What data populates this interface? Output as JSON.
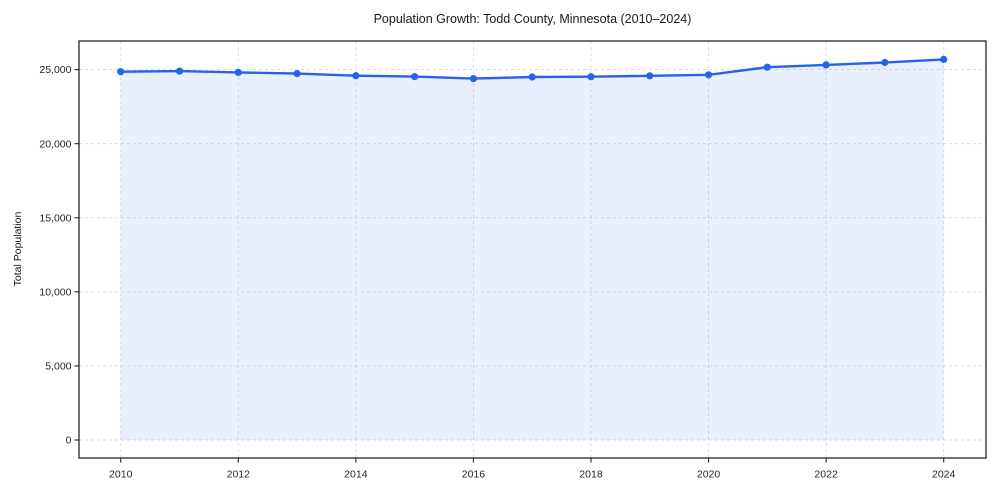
{
  "chart_data": {
    "type": "area",
    "title": "Population Growth: Todd County, Minnesota (2010–2024)",
    "xlabel": "",
    "ylabel": "Total Population",
    "series_name": "Total Population",
    "x": [
      2010,
      2011,
      2012,
      2013,
      2014,
      2015,
      2016,
      2017,
      2018,
      2019,
      2020,
      2021,
      2022,
      2023,
      2024
    ],
    "values": [
      24860,
      24900,
      24810,
      24730,
      24590,
      24530,
      24390,
      24500,
      24520,
      24580,
      24650,
      25160,
      25320,
      25480,
      25690
    ],
    "x_tick_values": [
      2010,
      2012,
      2014,
      2016,
      2018,
      2020,
      2022,
      2024
    ],
    "x_tick_labels": [
      "2010",
      "2012",
      "2014",
      "2016",
      "2018",
      "2020",
      "2022",
      "2024"
    ],
    "y_tick_values": [
      0,
      5000,
      10000,
      15000,
      20000,
      25000
    ],
    "y_tick_labels": [
      "0",
      "5,000",
      "10,000",
      "15,000",
      "20,000",
      "25,000"
    ],
    "xlim": [
      2009.29,
      2024.72
    ],
    "ylim": [
      -1215,
      26930
    ],
    "grid": true,
    "grid_style": "dashed",
    "legend": "none",
    "marker": "circle",
    "colors": {
      "line": "#2563eb",
      "fill": "#2563eb",
      "fill_opacity": "0.10",
      "grid": "#d9d9d9",
      "spine": "#262626",
      "text": "#262626"
    }
  }
}
